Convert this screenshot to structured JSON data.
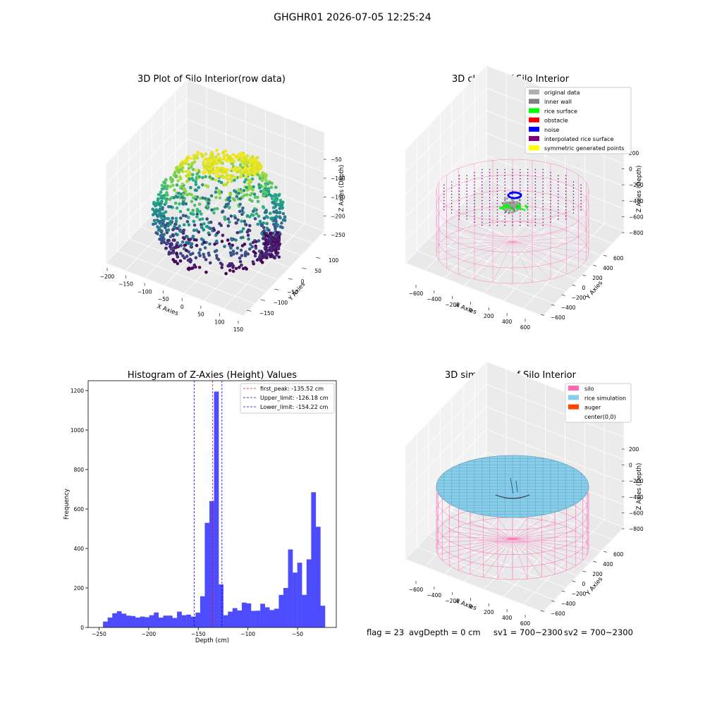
{
  "figure": {
    "suptitle": "GHGHR01 2026-07-05 12:25:24",
    "status": {
      "flag": "flag = 23",
      "avg_depth": "avgDepth = 0 cm",
      "sv1": "sv1 = 700~2300",
      "sv2": "sv2 = 700~2300"
    }
  },
  "colors": {
    "hist_bar": "#4d4dff",
    "first_peak": "#ff0000",
    "limits": "#0000ff",
    "silo": "#ff69b4",
    "rice_simulation": "#87ceeb",
    "auger": "#ff4500",
    "pane": "#f2f2f2"
  },
  "chart_data": [
    {
      "type": "scatter",
      "title": "3D Plot of Silo Interior(row data)",
      "xlabel": "X Axies",
      "ylabel": "Y Axies",
      "zlabel": "Z Axies (Depth)",
      "x_ticks": [
        "−200",
        "−150",
        "−100",
        "−50",
        "0",
        "50",
        "100",
        "150"
      ],
      "y_ticks": [
        "100",
        "50",
        "0",
        "−50",
        "−100",
        "−150"
      ],
      "z_ticks": [
        "−50",
        "−100",
        "−150",
        "−200",
        "−250"
      ],
      "xlim": [
        -200,
        150
      ],
      "ylim": [
        -150,
        100
      ],
      "zlim": [
        -260,
        -20
      ],
      "colormap": "viridis"
    },
    {
      "type": "scatter",
      "title": "3D classify of Silo Interior",
      "xlabel": "X Axies",
      "ylabel": "Y Axies",
      "zlabel": "Z Axies (Depth)",
      "x_ticks": [
        "−600",
        "−400",
        "−200",
        "0",
        "200",
        "400",
        "600"
      ],
      "y_ticks": [
        "600",
        "400",
        "200",
        "0",
        "−200",
        "−400",
        "−600"
      ],
      "z_ticks": [
        "200",
        "0",
        "−200",
        "−400",
        "−600",
        "−800"
      ],
      "legend": [
        {
          "label": "original data",
          "color": "#b0b0b0"
        },
        {
          "label": "inner wall",
          "color": "#808080"
        },
        {
          "label": "rice surface",
          "color": "#00ff00"
        },
        {
          "label": "obstacle",
          "color": "#ff0000"
        },
        {
          "label": "noise",
          "color": "#0000ff"
        },
        {
          "label": "interpolated rice surface",
          "color": "#800080"
        },
        {
          "label": "symmetric generated points",
          "color": "#ffff00"
        }
      ],
      "legend_position": "top-right"
    },
    {
      "type": "bar",
      "title": "Histogram of Z-Axies (Height) Values",
      "xlabel": "Depth (cm)",
      "ylabel": "Frequency",
      "xlim": [
        -261,
        -11
      ],
      "ylim": [
        0,
        1250
      ],
      "x_ticks": [
        -250,
        -200,
        -150,
        -100,
        -50
      ],
      "y_ticks": [
        0,
        200,
        400,
        600,
        800,
        1000,
        1200
      ],
      "bin_start": -246,
      "bin_width": 4.66,
      "values": [
        30,
        50,
        72,
        82,
        70,
        60,
        58,
        50,
        55,
        52,
        62,
        76,
        50,
        60,
        60,
        48,
        80,
        62,
        65,
        55,
        75,
        158,
        530,
        640,
        1195,
        218,
        62,
        80,
        98,
        86,
        126,
        122,
        84,
        85,
        120,
        102,
        88,
        95,
        165,
        200,
        395,
        278,
        328,
        165,
        345,
        685,
        510,
        110
      ],
      "vlines": [
        {
          "label": "first_peak: -135.52 cm",
          "x": -135.52,
          "color_key": "first_peak"
        },
        {
          "label": "Upper_limit: -126.18 cm",
          "x": -126.18,
          "color_key": "limits"
        },
        {
          "label": "Lower_limit: -154.22 cm",
          "x": -154.22,
          "color_key": "limits"
        }
      ],
      "legend_position": "top-right"
    },
    {
      "type": "surface",
      "title": "3D simulation of Silo Interior",
      "xlabel": "X Axies",
      "ylabel": "Y Axies",
      "zlabel": "Z Axies (Depth)",
      "x_ticks": [
        "−600",
        "−400",
        "−200",
        "0",
        "200",
        "400",
        "600"
      ],
      "y_ticks": [
        "600",
        "400",
        "200",
        "0",
        "−200",
        "−400",
        "−600"
      ],
      "z_ticks": [
        "200",
        "0",
        "−200",
        "−400",
        "−600",
        "−800"
      ],
      "legend": [
        {
          "label": "silo",
          "color": "#ff69b4"
        },
        {
          "label": "rice simulation",
          "color": "#87ceeb"
        },
        {
          "label": "auger",
          "color": "#ff4500"
        },
        {
          "label": "center(0,0)",
          "color": ""
        }
      ],
      "legend_position": "top-right"
    }
  ]
}
